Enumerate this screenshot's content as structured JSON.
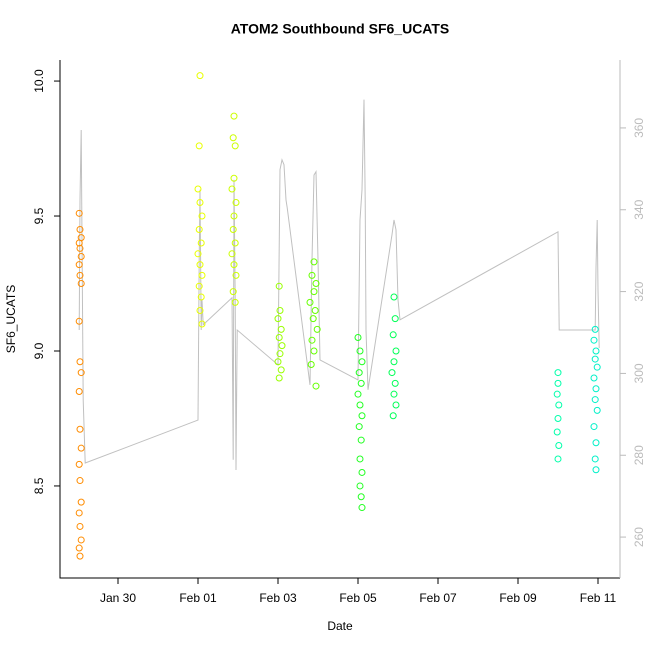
{
  "chart_data": {
    "type": "scatter",
    "title": "ATOM2 Southbound SF6_UCATS",
    "x_label": "Date",
    "y_label": "SF6_UCATS",
    "xlim": [
      28.55,
      42.55
    ],
    "ylim": [
      8.159,
      10.078
    ],
    "y2lim": [
      250,
      376.6
    ],
    "xticks": [
      {
        "value": 30,
        "label": "Jan 30"
      },
      {
        "value": 32,
        "label": "Feb 01"
      },
      {
        "value": 34,
        "label": "Feb 03"
      },
      {
        "value": 36,
        "label": "Feb 05"
      },
      {
        "value": 38,
        "label": "Feb 07"
      },
      {
        "value": 40,
        "label": "Feb 09"
      },
      {
        "value": 42,
        "label": "Feb 11"
      }
    ],
    "yticks": [
      8.5,
      {
        "value": 9,
        "label": "9.0"
      },
      9.5,
      {
        "value": 10,
        "label": "10.0"
      }
    ],
    "y2ticks": [
      260,
      280,
      300,
      320,
      340,
      360
    ],
    "series": [
      {
        "type": "line",
        "axis": "y2",
        "color": "#c0c0c0",
        "x": [
          29.03,
          29.05,
          29.08,
          29.1,
          29.13,
          29.18,
          32.0,
          32.03,
          32.05,
          32.08,
          32.1,
          32.13,
          32.85,
          32.88,
          32.9,
          32.93,
          32.95,
          32.98,
          34.0,
          34.05,
          34.1,
          34.15,
          34.2,
          34.23,
          34.8,
          34.85,
          34.9,
          34.95,
          35.0,
          35.05,
          36.0,
          36.05,
          36.1,
          36.15,
          36.18,
          36.2,
          36.25,
          36.85,
          36.9,
          36.95,
          37.0,
          37.05,
          41.0,
          41.03,
          41.93,
          41.95,
          41.98,
          42.0,
          42.03
        ],
        "values": [
          310.6,
          342.4,
          359.5,
          332.6,
          293.5,
          278.1,
          288.6,
          327.8,
          344.9,
          310.6,
          318.0,
          311.9,
          318.5,
          278.9,
          347.3,
          318.0,
          276.4,
          310.6,
          302.1,
          349.8,
          352.2,
          351.0,
          342.4,
          340.5,
          297.2,
          327.8,
          348.5,
          349.3,
          327.8,
          303.3,
          298.4,
          337.5,
          344.9,
          366.9,
          342.4,
          310.6,
          296.0,
          333.9,
          337.5,
          335.1,
          318.0,
          313.1,
          334.6,
          310.6,
          310.6,
          325.8,
          337.5,
          320.4,
          306.2
        ]
      },
      {
        "color": "#ff8c00",
        "x": [
          29.03,
          29.05,
          29.08,
          29.03,
          29.05,
          29.08,
          29.03,
          29.05,
          29.08,
          29.03,
          29.05,
          29.08,
          29.03,
          29.05,
          29.08,
          29.03,
          29.05,
          29.08,
          29.03,
          29.05,
          29.08,
          29.03,
          29.05
        ],
        "values": [
          9.51,
          9.45,
          9.42,
          9.4,
          9.38,
          9.35,
          9.32,
          9.28,
          9.25,
          9.11,
          8.96,
          8.92,
          8.85,
          8.71,
          8.64,
          8.58,
          8.52,
          8.44,
          8.4,
          8.35,
          8.3,
          8.27,
          8.24
        ]
      },
      {
        "color": "#e8ff00",
        "x": [
          32.05,
          32.03,
          32.0,
          32.05,
          32.1,
          32.03,
          32.08,
          32.0,
          32.05,
          32.1,
          32.03,
          32.08,
          32.05,
          32.1
        ],
        "values": [
          10.02,
          9.76,
          9.6,
          9.55,
          9.5,
          9.45,
          9.4,
          9.36,
          9.32,
          9.28,
          9.24,
          9.2,
          9.15,
          9.1
        ]
      },
      {
        "color": "#ccff00",
        "x": [
          32.9,
          32.88,
          32.93,
          32.9,
          32.85,
          32.95,
          32.9,
          32.88,
          32.93,
          32.85,
          32.9,
          32.95,
          32.88,
          32.93
        ],
        "values": [
          9.87,
          9.79,
          9.76,
          9.64,
          9.6,
          9.55,
          9.5,
          9.45,
          9.4,
          9.36,
          9.32,
          9.28,
          9.22,
          9.18
        ]
      },
      {
        "color": "#99ff00",
        "x": [
          34.03,
          34.05,
          34.0,
          34.08,
          34.03,
          34.1,
          34.05,
          34.0,
          34.08,
          34.03
        ],
        "values": [
          9.24,
          9.15,
          9.12,
          9.08,
          9.05,
          9.02,
          8.99,
          8.96,
          8.93,
          8.9
        ]
      },
      {
        "color": "#66ff00",
        "x": [
          34.9,
          34.85,
          34.95,
          34.9,
          34.8,
          34.93,
          34.88,
          34.98,
          34.85,
          34.9,
          34.83,
          34.95
        ],
        "values": [
          9.33,
          9.28,
          9.25,
          9.22,
          9.18,
          9.15,
          9.12,
          9.08,
          9.04,
          9.0,
          8.95,
          8.87
        ]
      },
      {
        "color": "#22ff22",
        "x": [
          36.0,
          36.05,
          36.1,
          36.03,
          36.08,
          36.0,
          36.05,
          36.1,
          36.03,
          36.08,
          36.05,
          36.1,
          36.05,
          36.08,
          36.1
        ],
        "values": [
          9.05,
          9.0,
          8.96,
          8.92,
          8.88,
          8.84,
          8.8,
          8.76,
          8.72,
          8.67,
          8.6,
          8.55,
          8.5,
          8.46,
          8.42
        ]
      },
      {
        "color": "#00ff55",
        "x": [
          36.9,
          36.93,
          36.88,
          36.95,
          36.9,
          36.85,
          36.93,
          36.9,
          36.95,
          36.88
        ],
        "values": [
          9.2,
          9.12,
          9.06,
          9.0,
          8.96,
          8.92,
          8.88,
          8.84,
          8.8,
          8.76
        ]
      },
      {
        "color": "#00ffaa",
        "x": [
          41.0,
          41.0,
          40.98,
          41.02,
          41.0,
          40.98,
          41.02,
          41.0
        ],
        "values": [
          8.92,
          8.88,
          8.84,
          8.8,
          8.75,
          8.7,
          8.65,
          8.6
        ]
      },
      {
        "color": "#00f0c8",
        "x": [
          41.93,
          41.9,
          41.95,
          41.93,
          41.98,
          41.9,
          41.95,
          41.93,
          41.98,
          41.9,
          41.95,
          41.93,
          41.95
        ],
        "values": [
          9.08,
          9.04,
          9.0,
          8.97,
          8.94,
          8.9,
          8.86,
          8.82,
          8.78,
          8.72,
          8.66,
          8.6,
          8.56
        ]
      }
    ]
  }
}
